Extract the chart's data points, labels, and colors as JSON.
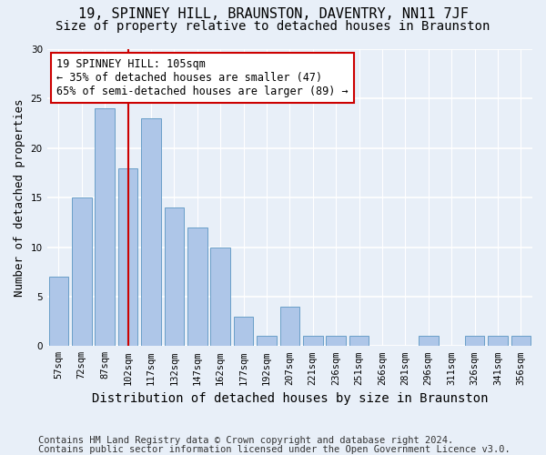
{
  "title": "19, SPINNEY HILL, BRAUNSTON, DAVENTRY, NN11 7JF",
  "subtitle": "Size of property relative to detached houses in Braunston",
  "xlabel": "Distribution of detached houses by size in Braunston",
  "ylabel": "Number of detached properties",
  "categories": [
    "57sqm",
    "72sqm",
    "87sqm",
    "102sqm",
    "117sqm",
    "132sqm",
    "147sqm",
    "162sqm",
    "177sqm",
    "192sqm",
    "207sqm",
    "221sqm",
    "236sqm",
    "251sqm",
    "266sqm",
    "281sqm",
    "296sqm",
    "311sqm",
    "326sqm",
    "341sqm",
    "356sqm"
  ],
  "values": [
    7,
    15,
    24,
    18,
    23,
    14,
    12,
    10,
    3,
    1,
    4,
    1,
    1,
    1,
    0,
    0,
    1,
    0,
    1,
    1,
    1
  ],
  "bar_color": "#aec6e8",
  "bar_edge_color": "#6a9fc8",
  "background_color": "#e8eff8",
  "grid_color": "#ffffff",
  "annotation_box_text": "19 SPINNEY HILL: 105sqm\n← 35% of detached houses are smaller (47)\n65% of semi-detached houses are larger (89) →",
  "annotation_box_color": "#ffffff",
  "annotation_line_color": "#cc0000",
  "annotation_box_edge_color": "#cc0000",
  "ylim": [
    0,
    30
  ],
  "title_fontsize": 11,
  "subtitle_fontsize": 10,
  "ylabel_fontsize": 9,
  "xlabel_fontsize": 10,
  "annot_fontsize": 8.5,
  "tick_fontsize": 7.5,
  "footnote1": "Contains HM Land Registry data © Crown copyright and database right 2024.",
  "footnote2": "Contains public sector information licensed under the Open Government Licence v3.0.",
  "footnote_fontsize": 7.5,
  "line_x_index": 3.0
}
